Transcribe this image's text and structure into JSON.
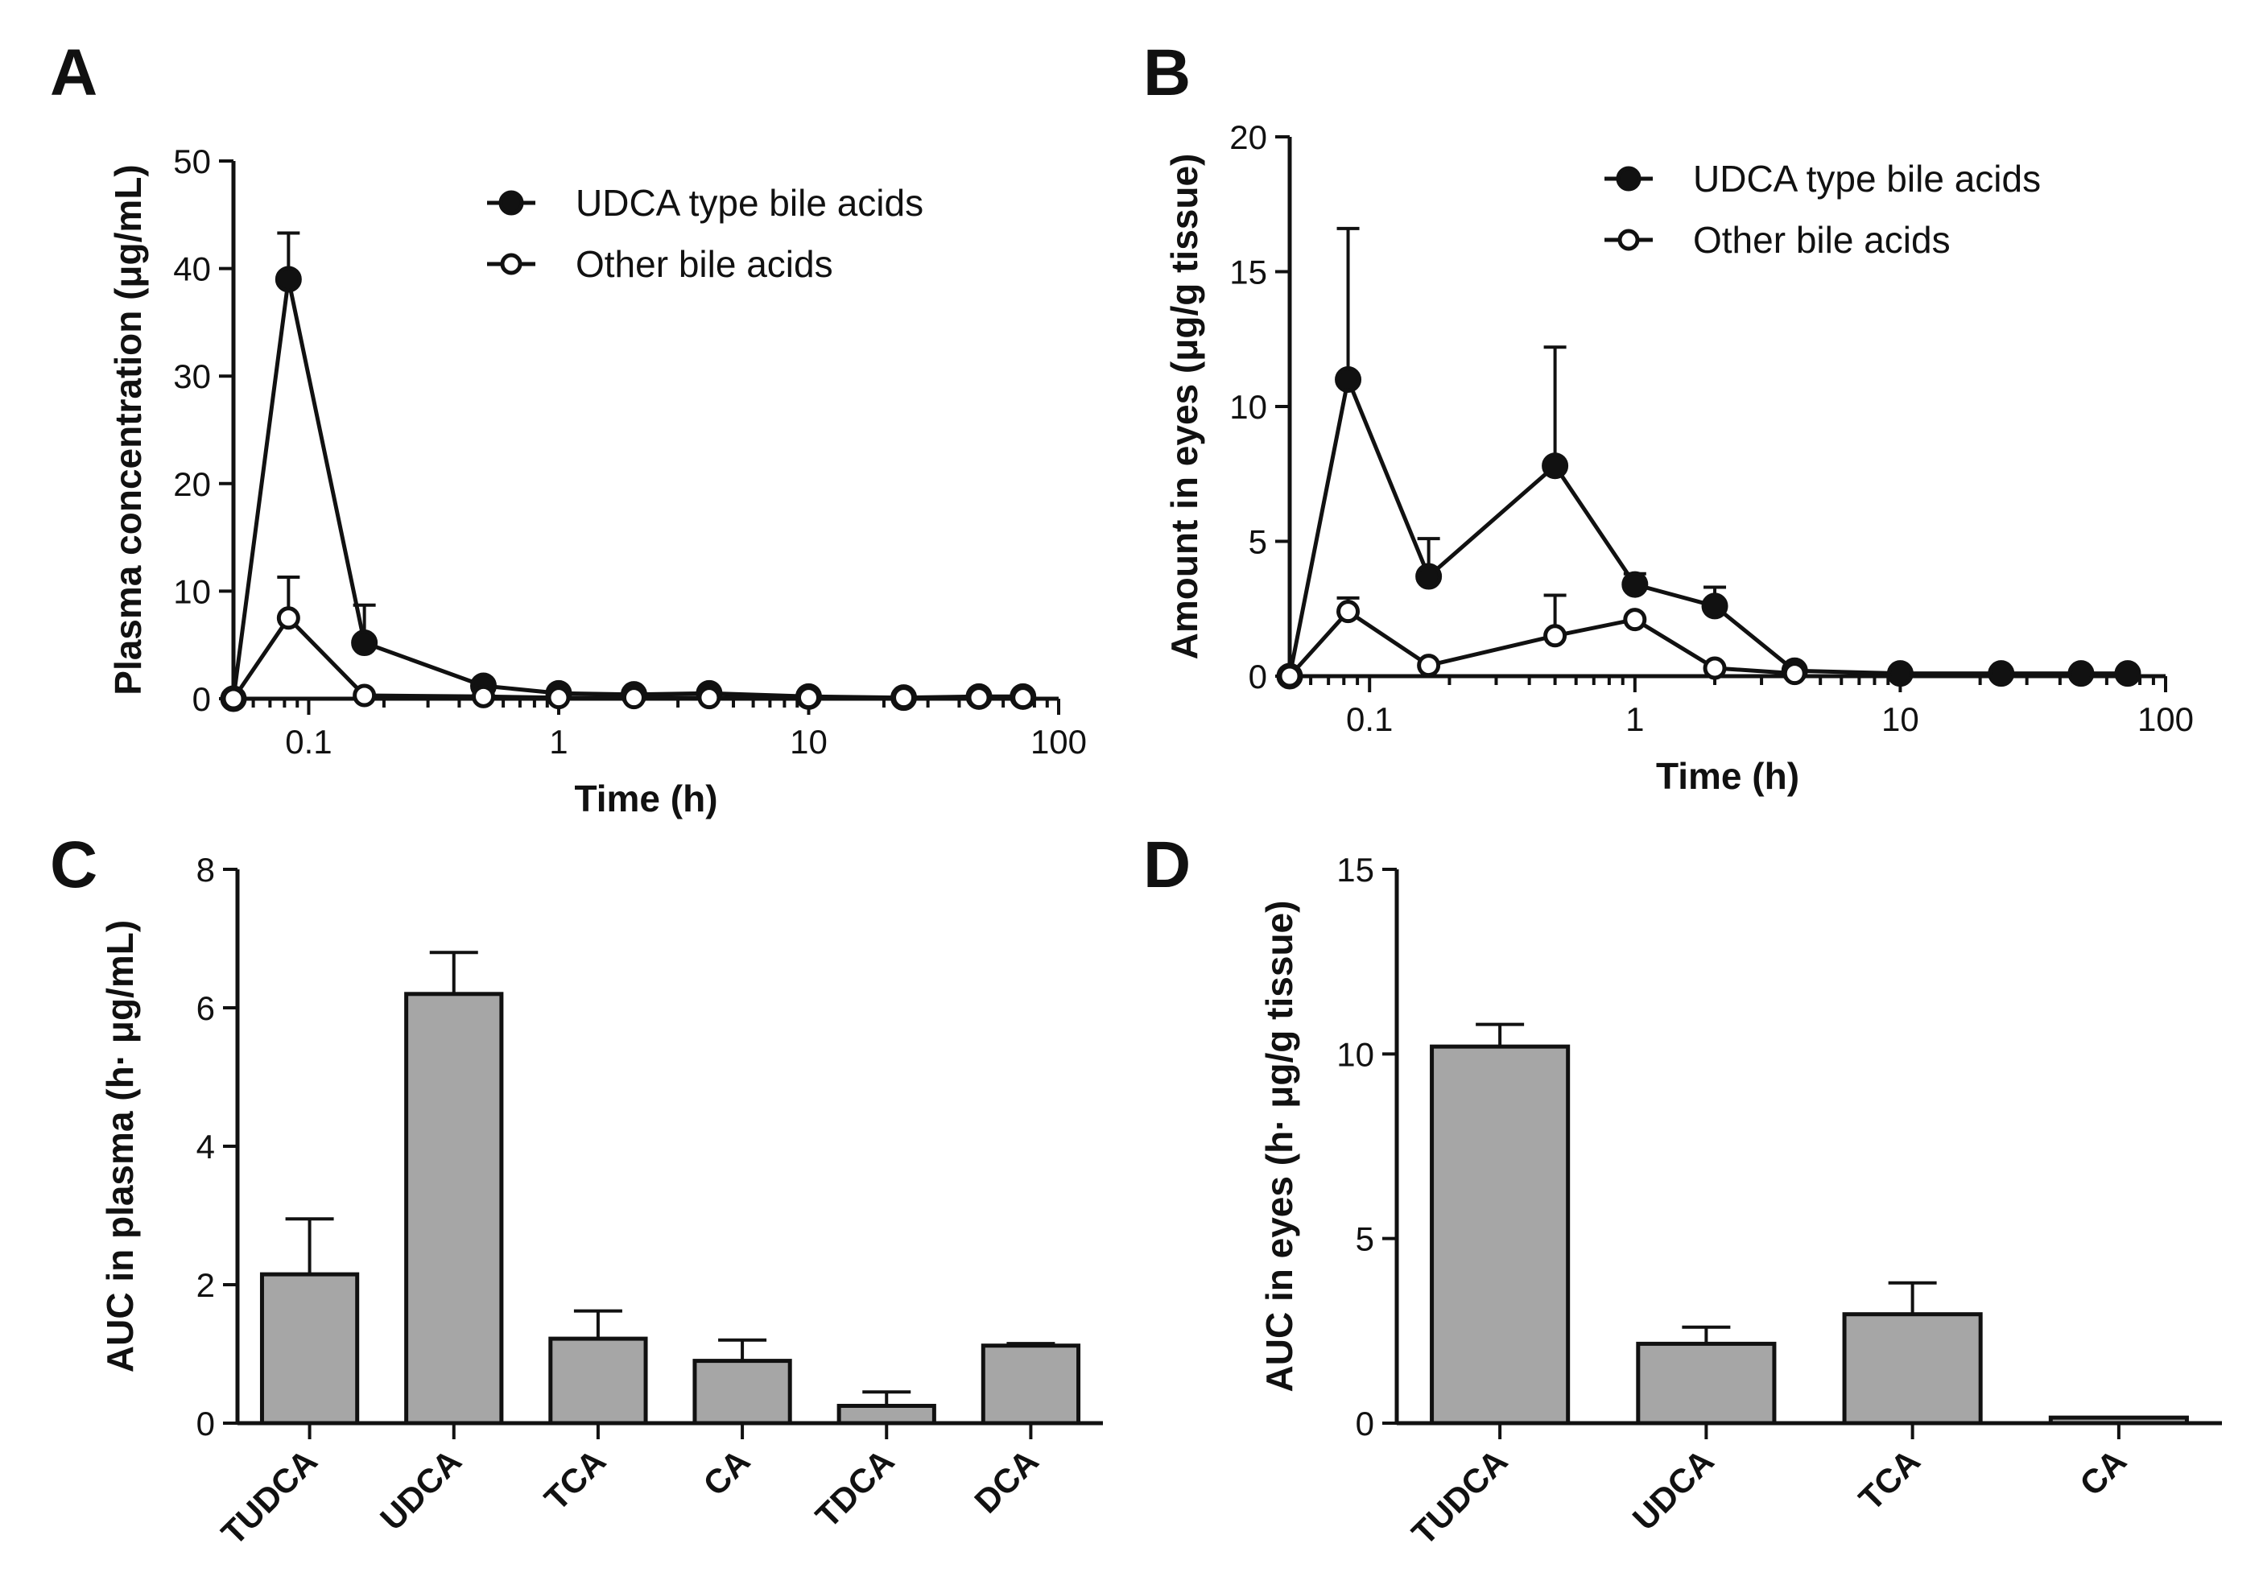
{
  "chart_data": [
    {
      "panel": "A",
      "type": "line",
      "xscale": "log",
      "xlim": [
        0.05,
        100
      ],
      "ylim": [
        0,
        50
      ],
      "xticks": [
        "0.1",
        "1",
        "10",
        "100"
      ],
      "yticks": [
        "0",
        "10",
        "20",
        "30",
        "40",
        "50"
      ],
      "xlabel": "Time (h)",
      "ylabel": "Plasma concentration (μg/mL)",
      "legend_position": "top-right",
      "series": [
        {
          "name": "UDCA type bile acids",
          "marker": "filled",
          "x": [
            0.05,
            0.083,
            0.167,
            0.5,
            1,
            2,
            4,
            10,
            24,
            48,
            72
          ],
          "y": [
            0,
            39,
            5.2,
            1.2,
            0.5,
            0.4,
            0.5,
            0.2,
            0.1,
            0.2,
            0.2
          ],
          "err": [
            0,
            4.3,
            3.5,
            0,
            0,
            0,
            0,
            0,
            0,
            0,
            0
          ]
        },
        {
          "name": "Other bile acids",
          "marker": "open",
          "x": [
            0.05,
            0.083,
            0.167,
            0.5,
            1,
            2,
            4,
            10,
            24,
            48,
            72
          ],
          "y": [
            0,
            7.5,
            0.3,
            0.2,
            0.1,
            0.1,
            0.1,
            0.1,
            0.1,
            0.1,
            0.1
          ],
          "err": [
            0,
            3.8,
            0,
            0,
            0,
            0,
            0,
            0,
            0,
            0,
            0
          ]
        }
      ]
    },
    {
      "panel": "B",
      "type": "line",
      "xscale": "log",
      "xlim": [
        0.05,
        100
      ],
      "ylim": [
        0,
        20
      ],
      "xticks": [
        "0.1",
        "1",
        "10",
        "100"
      ],
      "yticks": [
        "0",
        "5",
        "10",
        "15",
        "20"
      ],
      "xlabel": "Time (h)",
      "ylabel": "Amount in eyes (μg/g tissue)",
      "legend_position": "top-right",
      "series": [
        {
          "name": "UDCA type bile acids",
          "marker": "filled",
          "x": [
            0.05,
            0.083,
            0.167,
            0.5,
            1,
            2,
            4,
            10,
            24,
            48,
            72
          ],
          "y": [
            0,
            11,
            3.7,
            7.8,
            3.4,
            2.6,
            0.2,
            0.1,
            0.1,
            0.1,
            0.1
          ],
          "err": [
            0,
            5.6,
            1.4,
            4.4,
            0.4,
            0.7,
            0,
            0,
            0,
            0,
            0
          ]
        },
        {
          "name": "Other bile acids",
          "marker": "open",
          "x": [
            0.05,
            0.083,
            0.167,
            0.5,
            1,
            2,
            4
          ],
          "y": [
            0,
            2.4,
            0.4,
            1.5,
            2.1,
            0.3,
            0.1
          ],
          "err": [
            0,
            0.5,
            0,
            1.5,
            0,
            0,
            0
          ]
        }
      ]
    },
    {
      "panel": "C",
      "type": "bar",
      "categories": [
        "TUDCA",
        "UDCA",
        "TCA",
        "CA",
        "TDCA",
        "DCA"
      ],
      "values": [
        2.15,
        6.2,
        1.22,
        0.9,
        0.25,
        1.12
      ],
      "errors": [
        0.8,
        0.6,
        0.4,
        0.3,
        0.2,
        0.03
      ],
      "ylim": [
        0,
        8
      ],
      "yticks": [
        "0",
        "2",
        "4",
        "6",
        "8"
      ],
      "xlabel": "",
      "ylabel": "AUC in plasma (h· μg/mL)"
    },
    {
      "panel": "D",
      "type": "bar",
      "categories": [
        "TUDCA",
        "UDCA",
        "TCA",
        "CA"
      ],
      "values": [
        10.2,
        2.15,
        2.95,
        0.15
      ],
      "errors": [
        0.6,
        0.45,
        0.85,
        0
      ],
      "ylim": [
        0,
        15
      ],
      "yticks": [
        "0",
        "5",
        "10",
        "15"
      ],
      "xlabel": "",
      "ylabel": "AUC in eyes (h· μg/g tissue)"
    }
  ]
}
